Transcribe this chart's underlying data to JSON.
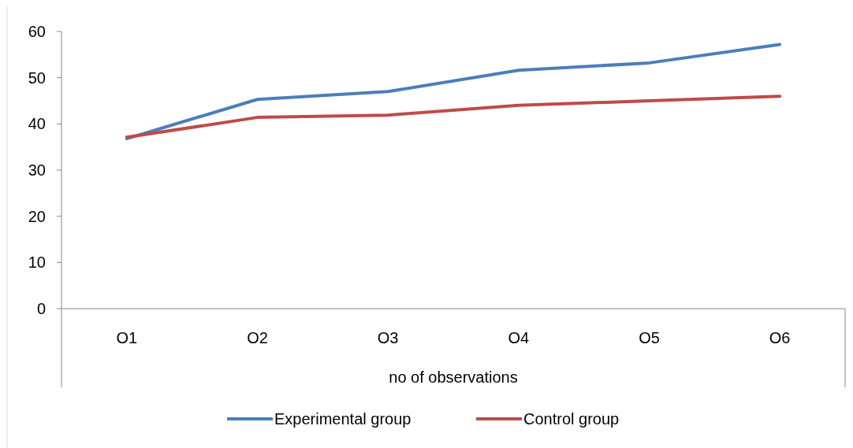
{
  "chart_data": {
    "type": "line",
    "xlabel": "no of observations",
    "categories": [
      "O1",
      "O2",
      "O3",
      "O4",
      "O5",
      "O6"
    ],
    "series": [
      {
        "name": "Experimental group",
        "color": "#4a7ebb",
        "values": [
          36.8,
          45.3,
          47.0,
          51.6,
          53.2,
          57.2
        ]
      },
      {
        "name": "Control group",
        "color": "#be4b48",
        "values": [
          37.1,
          41.4,
          41.9,
          44.0,
          45.0,
          46.0
        ]
      }
    ],
    "ylim": [
      0,
      60
    ],
    "yticks": [
      0,
      10,
      20,
      30,
      40,
      50,
      60
    ],
    "grid": false,
    "legend": "bottom",
    "marker": "none",
    "line_style": "solid"
  }
}
